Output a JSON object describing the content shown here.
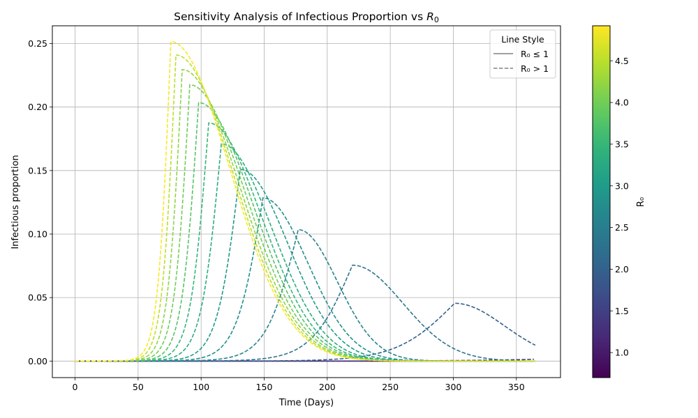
{
  "chart_data": {
    "type": "line",
    "title": "Sensitivity Analysis of Infectious Proportion vs ",
    "title_symbol": "R",
    "title_subscript": "0",
    "xlabel": "Time (Days)",
    "ylabel": "Infectious proportion",
    "xlim": [
      -18,
      385
    ],
    "ylim": [
      -0.013,
      0.264
    ],
    "x_ticks": [
      0,
      50,
      100,
      150,
      200,
      250,
      300,
      350
    ],
    "x_tick_labels": [
      "0",
      "50",
      "100",
      "150",
      "200",
      "250",
      "300",
      "350"
    ],
    "y_ticks": [
      0.0,
      0.05,
      0.1,
      0.15,
      0.2,
      0.25
    ],
    "y_tick_labels": [
      "0.00",
      "0.05",
      "0.10",
      "0.15",
      "0.20",
      "0.25"
    ],
    "grid": true,
    "legend": {
      "title": "Line Style",
      "position": "top-right",
      "entries": [
        {
          "label": "R₀ ≤ 1",
          "style": "solid"
        },
        {
          "label": "R₀ > 1",
          "style": "dashed"
        }
      ]
    },
    "colorbar": {
      "label": "R₀",
      "colormap": "viridis",
      "range": [
        0.7,
        4.92
      ],
      "ticks": [
        1.0,
        1.5,
        2.0,
        2.5,
        3.0,
        3.5,
        4.0,
        4.5
      ],
      "tick_labels": [
        "1.0",
        "1.5",
        "2.0",
        "2.5",
        "3.0",
        "3.5",
        "4.0",
        "4.5"
      ]
    },
    "x_end": 365,
    "series": [
      {
        "r0": 0.7,
        "style": "solid",
        "peak_day": 0,
        "peak": 0.0,
        "end_value": 0.0
      },
      {
        "r0": 1.0,
        "style": "solid",
        "peak_day": 0,
        "peak": 0.0,
        "end_value": 0.0
      },
      {
        "r0": 1.5,
        "style": "dashed",
        "peak_day": 365,
        "peak": 0.0015,
        "end_value": 0.0015
      },
      {
        "r0": 2.0,
        "style": "dashed",
        "peak_day": 301,
        "peak": 0.0455,
        "end_value": 0.0125
      },
      {
        "r0": 2.3,
        "style": "dashed",
        "peak_day": 220,
        "peak": 0.0755,
        "end_value": 0.0001
      },
      {
        "r0": 2.6,
        "style": "dashed",
        "peak_day": 177,
        "peak": 0.1035,
        "end_value": 0.0
      },
      {
        "r0": 2.8,
        "style": "dashed",
        "peak_day": 149,
        "peak": 0.1285,
        "end_value": 0.0
      },
      {
        "r0": 3.0,
        "style": "dashed",
        "peak_day": 131,
        "peak": 0.151,
        "end_value": 0.0
      },
      {
        "r0": 3.3,
        "style": "dashed",
        "peak_day": 116,
        "peak": 0.171,
        "end_value": 0.0
      },
      {
        "r0": 3.5,
        "style": "dashed",
        "peak_day": 106,
        "peak": 0.1875,
        "end_value": 0.0
      },
      {
        "r0": 3.8,
        "style": "dashed",
        "peak_day": 98,
        "peak": 0.2035,
        "end_value": 0.0
      },
      {
        "r0": 4.0,
        "style": "dashed",
        "peak_day": 91,
        "peak": 0.2175,
        "end_value": 0.0
      },
      {
        "r0": 4.2,
        "style": "dashed",
        "peak_day": 85,
        "peak": 0.2295,
        "end_value": 0.0
      },
      {
        "r0": 4.5,
        "style": "dashed",
        "peak_day": 80,
        "peak": 0.241,
        "end_value": 0.0
      },
      {
        "r0": 4.9,
        "style": "dashed",
        "peak_day": 76,
        "peak": 0.2515,
        "end_value": 0.0
      }
    ]
  }
}
